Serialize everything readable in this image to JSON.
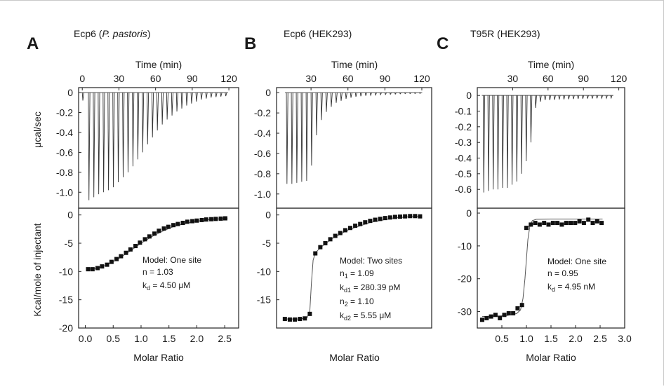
{
  "panels": [
    {
      "letter": "A",
      "title_parts": [
        {
          "text": "Ecp6 (",
          "italic": false
        },
        {
          "text": "P. pastoris",
          "italic": true
        },
        {
          "text": ")",
          "italic": false
        }
      ]
    },
    {
      "letter": "B",
      "title_parts": [
        {
          "text": "Ecp6 (HEK293)",
          "italic": false
        }
      ]
    },
    {
      "letter": "C",
      "title_parts": [
        {
          "text": "T95R (HEK293)",
          "italic": false
        }
      ]
    }
  ],
  "chart_data": [
    {
      "type": "line",
      "panel": "A",
      "part": "raw-heat",
      "xlabel": "Time (min)",
      "ylabel": "μcal/sec",
      "xlim": [
        -3,
        128
      ],
      "ylim": [
        -1.16,
        0.05
      ],
      "x_ticks": [
        0,
        30,
        60,
        90,
        120
      ],
      "y_ticks": [
        0,
        -0.2,
        -0.4,
        -0.6,
        -0.8,
        -1.0
      ],
      "y_tick_labels": [
        "0",
        "-0.2",
        "-0.4",
        "-0.6",
        "-0.8",
        "-1.0"
      ],
      "injection_times": [
        0,
        5,
        9,
        13,
        17,
        21,
        25,
        29,
        33,
        37,
        41,
        45,
        49,
        53,
        57,
        61,
        65,
        69,
        73,
        77,
        81,
        85,
        89,
        93,
        97,
        101,
        105,
        109,
        113,
        117
      ],
      "peak_heights": [
        -0.08,
        -1.08,
        -1.05,
        -1.02,
        -1.0,
        -0.98,
        -0.95,
        -0.9,
        -0.85,
        -0.8,
        -0.74,
        -0.67,
        -0.6,
        -0.52,
        -0.45,
        -0.38,
        -0.32,
        -0.27,
        -0.23,
        -0.19,
        -0.16,
        -0.13,
        -0.11,
        -0.09,
        -0.07,
        -0.06,
        -0.05,
        -0.045,
        -0.04,
        -0.035
      ]
    },
    {
      "type": "scatter",
      "panel": "A",
      "part": "integrated-heat",
      "xlabel": "Molar Ratio",
      "ylabel": "Kcal/mole of injectant",
      "xlim": [
        -0.12,
        2.75
      ],
      "ylim": [
        -20,
        1.2
      ],
      "x_ticks": [
        0,
        0.5,
        1.0,
        1.5,
        2.0,
        2.5
      ],
      "x_tick_labels": [
        "0.0",
        "0.5",
        "1.0",
        "1.5",
        "2.0",
        "2.5"
      ],
      "y_ticks": [
        0,
        -5,
        -10,
        -15,
        -20
      ],
      "y_tick_labels": [
        "0",
        "-5",
        "-10",
        "-15",
        "-20"
      ],
      "x": [
        0.05,
        0.13,
        0.22,
        0.3,
        0.39,
        0.47,
        0.56,
        0.64,
        0.73,
        0.81,
        0.9,
        0.98,
        1.07,
        1.15,
        1.24,
        1.32,
        1.41,
        1.49,
        1.58,
        1.66,
        1.75,
        1.83,
        1.92,
        2.0,
        2.09,
        2.17,
        2.26,
        2.34,
        2.43,
        2.51
      ],
      "y": [
        -9.6,
        -9.6,
        -9.4,
        -9.1,
        -8.8,
        -8.3,
        -7.8,
        -7.3,
        -6.7,
        -6.1,
        -5.5,
        -4.9,
        -4.3,
        -3.8,
        -3.3,
        -2.8,
        -2.4,
        -2.1,
        -1.8,
        -1.6,
        -1.4,
        -1.2,
        -1.1,
        -1.0,
        -0.9,
        -0.8,
        -0.75,
        -0.7,
        -0.65,
        -0.6
      ],
      "fit_x": [
        0.05,
        0.2,
        0.4,
        0.6,
        0.8,
        1.0,
        1.2,
        1.4,
        1.6,
        1.8,
        2.0,
        2.2,
        2.4,
        2.55
      ],
      "fit_y": [
        -9.6,
        -9.45,
        -8.8,
        -7.7,
        -6.4,
        -5.0,
        -3.8,
        -2.8,
        -2.0,
        -1.5,
        -1.1,
        -0.85,
        -0.7,
        -0.6
      ],
      "annotations": {
        "model": "Model: One site",
        "n": "n = 1.03",
        "kd_prefix": "k",
        "kd_sub": "d",
        "kd_value": " = 4.50 μM"
      }
    },
    {
      "type": "line",
      "panel": "B",
      "part": "raw-heat",
      "xlabel": "Time (min)",
      "ylabel": "",
      "xlim": [
        2,
        128
      ],
      "ylim": [
        -1.14,
        0.05
      ],
      "x_ticks": [
        30,
        60,
        90,
        120
      ],
      "y_ticks": [
        0,
        -0.2,
        -0.4,
        -0.6,
        -0.8,
        -1.0
      ],
      "y_tick_labels": [
        "0",
        "-0.2",
        "-0.4",
        "-0.6",
        "-0.8",
        "-1.0"
      ],
      "injection_times": [
        10,
        14,
        18,
        22,
        26,
        30,
        34,
        38,
        42,
        46,
        50,
        54,
        58,
        62,
        66,
        70,
        74,
        78,
        82,
        86,
        90,
        94,
        98,
        102,
        106,
        110,
        114,
        118
      ],
      "peak_heights": [
        -0.9,
        -0.9,
        -0.89,
        -0.88,
        -0.87,
        -0.72,
        -0.42,
        -0.27,
        -0.19,
        -0.14,
        -0.1,
        -0.08,
        -0.06,
        -0.05,
        -0.04,
        -0.035,
        -0.03,
        -0.026,
        -0.023,
        -0.02,
        -0.018,
        -0.016,
        -0.014,
        -0.012,
        -0.01,
        -0.01,
        -0.009,
        -0.008
      ]
    },
    {
      "type": "scatter",
      "panel": "B",
      "part": "integrated-heat",
      "xlabel": "Molar Ratio",
      "ylabel": "",
      "xlim": [
        -0.1,
        2.7
      ],
      "ylim": [
        -20,
        1.2
      ],
      "x_ticks": [],
      "y_ticks": [
        0,
        -5,
        -10,
        -15
      ],
      "y_tick_labels": [
        "0",
        "-5",
        "-10",
        "-15"
      ],
      "x": [
        0.05,
        0.14,
        0.23,
        0.32,
        0.41,
        0.5,
        0.6,
        0.69,
        0.78,
        0.87,
        0.96,
        1.05,
        1.14,
        1.23,
        1.32,
        1.41,
        1.5,
        1.59,
        1.68,
        1.77,
        1.86,
        1.95,
        2.04,
        2.13,
        2.22,
        2.31,
        2.4,
        2.49
      ],
      "y": [
        -18.4,
        -18.5,
        -18.5,
        -18.4,
        -18.3,
        -17.5,
        -6.8,
        -5.7,
        -5.0,
        -4.3,
        -3.7,
        -3.2,
        -2.7,
        -2.3,
        -1.9,
        -1.6,
        -1.3,
        -1.05,
        -0.85,
        -0.7,
        -0.55,
        -0.45,
        -0.35,
        -0.3,
        -0.25,
        -0.2,
        -0.2,
        -0.25
      ],
      "fit_x": [
        0.05,
        0.3,
        0.45,
        0.5,
        0.53,
        0.56,
        0.6,
        0.7,
        0.9,
        1.2,
        1.6,
        2.0,
        2.4,
        2.5
      ],
      "fit_y": [
        -18.4,
        -18.4,
        -18.2,
        -17.0,
        -12.0,
        -8.0,
        -6.7,
        -5.7,
        -4.2,
        -2.6,
        -1.3,
        -0.55,
        -0.25,
        -0.25
      ],
      "annotations": {
        "model": "Model: Two sites",
        "n1_prefix": "n",
        "n1_sub": "1",
        "n1_value": " = 1.09",
        "kd1_prefix": "k",
        "kd1_sub": "d1",
        "kd1_value": " = 280.39 pM",
        "n2_prefix": "n",
        "n2_sub": "2",
        "n2_value": " = 1.10",
        "kd2_prefix": "k",
        "kd2_sub": "d2",
        "kd2_value": " = 5.55 μM"
      }
    },
    {
      "type": "line",
      "panel": "C",
      "part": "raw-heat",
      "xlabel": "Time (min)",
      "ylabel": "",
      "xlim": [
        0,
        125
      ],
      "ylim": [
        -0.72,
        0.05
      ],
      "x_ticks": [
        30,
        60,
        90,
        120
      ],
      "y_ticks": [
        0,
        -0.1,
        -0.2,
        -0.3,
        -0.4,
        -0.5,
        -0.6
      ],
      "y_tick_labels": [
        "0",
        "-0.1",
        "-0.2",
        "-0.3",
        "-0.4",
        "-0.5",
        "-0.6"
      ],
      "injection_times": [
        5,
        9,
        13,
        17,
        21,
        25,
        29,
        33,
        37,
        41,
        45,
        49,
        53,
        57,
        61,
        65,
        69,
        73,
        77,
        81,
        85,
        89,
        93,
        97,
        101,
        105,
        109,
        113
      ],
      "peak_heights": [
        -0.62,
        -0.61,
        -0.6,
        -0.6,
        -0.59,
        -0.59,
        -0.57,
        -0.55,
        -0.5,
        -0.42,
        -0.3,
        -0.08,
        -0.04,
        -0.03,
        -0.03,
        -0.028,
        -0.026,
        -0.025,
        -0.024,
        -0.023,
        -0.022,
        -0.021,
        -0.02,
        -0.02,
        -0.019,
        -0.018,
        -0.018,
        -0.017
      ]
    },
    {
      "type": "scatter",
      "panel": "C",
      "part": "integrated-heat",
      "xlabel": "Molar Ratio",
      "ylabel": "",
      "xlim": [
        0,
        3.0
      ],
      "ylim": [
        -35,
        1.5
      ],
      "x_ticks": [
        0.5,
        1.0,
        1.5,
        2.0,
        2.5,
        3.0
      ],
      "x_tick_labels": [
        "0.5",
        "1.0",
        "1.5",
        "2.0",
        "2.5",
        "3.0"
      ],
      "y_ticks": [
        0,
        -10,
        -20,
        -30
      ],
      "y_tick_labels": [
        "0",
        "-10",
        "-20",
        "-30"
      ],
      "x": [
        0.1,
        0.19,
        0.28,
        0.37,
        0.46,
        0.55,
        0.64,
        0.73,
        0.82,
        0.91,
        1.0,
        1.09,
        1.18,
        1.27,
        1.36,
        1.45,
        1.54,
        1.63,
        1.72,
        1.81,
        1.9,
        1.99,
        2.08,
        2.17,
        2.26,
        2.35,
        2.44,
        2.53
      ],
      "y": [
        -32.5,
        -32.0,
        -31.5,
        -31.0,
        -32.0,
        -31.0,
        -30.5,
        -30.5,
        -29.0,
        -28.0,
        -4.5,
        -3.5,
        -3.0,
        -3.5,
        -3.0,
        -3.5,
        -3.0,
        -3.0,
        -3.5,
        -3.0,
        -3.0,
        -3.0,
        -2.5,
        -3.0,
        -2.0,
        -3.0,
        -2.5,
        -3.0
      ],
      "fit_x": [
        0.1,
        0.6,
        0.8,
        0.88,
        0.93,
        0.97,
        1.0,
        1.03,
        1.07,
        1.12,
        1.2,
        1.5,
        2.0,
        2.55
      ],
      "fit_y": [
        -31.5,
        -31.2,
        -30.6,
        -29.5,
        -26.0,
        -20.0,
        -14.0,
        -8.0,
        -4.0,
        -2.3,
        -1.9,
        -1.8,
        -1.8,
        -1.8
      ],
      "annotations": {
        "model": "Model: One site",
        "n": "n = 0.95",
        "kd_prefix": "k",
        "kd_sub": "d",
        "kd_value": " = 4.95 nM"
      }
    }
  ]
}
